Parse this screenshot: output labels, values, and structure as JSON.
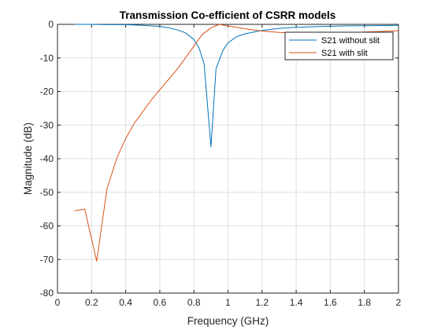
{
  "chart_data": {
    "type": "line",
    "title": "Transmission Co-efficient of CSRR models",
    "xlabel": "Frequency (GHz)",
    "ylabel": "Magnitude (dB)",
    "xlim": [
      0,
      2
    ],
    "ylim": [
      -80,
      0
    ],
    "xticks": [
      0,
      0.2,
      0.4,
      0.6,
      0.8,
      1,
      1.2,
      1.4,
      1.6,
      1.8,
      2
    ],
    "xtick_labels": [
      "0",
      "0.2",
      "0.4",
      "0.6",
      "0.8",
      "1",
      "1.2",
      "1.4",
      "1.6",
      "1.8",
      "2"
    ],
    "yticks": [
      0,
      -10,
      -20,
      -30,
      -40,
      -50,
      -60,
      -70,
      -80
    ],
    "ytick_labels": [
      "0",
      "-10",
      "-20",
      "-30",
      "-40",
      "-50",
      "-60",
      "-70",
      "-80"
    ],
    "grid": true,
    "legend_position": "top-right",
    "series": [
      {
        "name": "S21 without slit",
        "color": "#0072BD",
        "x": [
          0.1,
          0.2,
          0.3,
          0.4,
          0.5,
          0.6,
          0.65,
          0.7,
          0.75,
          0.8,
          0.83,
          0.86,
          0.9,
          0.93,
          0.97,
          1.0,
          1.05,
          1.1,
          1.2,
          1.3,
          1.4,
          1.5,
          1.6,
          1.7,
          1.8,
          1.9,
          2.0
        ],
        "y": [
          0,
          0,
          -0.1,
          -0.1,
          -0.3,
          -0.6,
          -1.0,
          -1.6,
          -2.5,
          -4.5,
          -7.0,
          -11.8,
          -36.5,
          -13.2,
          -7.8,
          -5.5,
          -3.7,
          -2.8,
          -1.8,
          -1.2,
          -0.9,
          -0.7,
          -0.55,
          -0.45,
          -0.4,
          -0.35,
          -0.3
        ]
      },
      {
        "name": "S21 with slit",
        "color": "#D95319",
        "x": [
          0.1,
          0.16,
          0.23,
          0.29,
          0.35,
          0.4,
          0.45,
          0.5,
          0.55,
          0.6,
          0.65,
          0.7,
          0.75,
          0.8,
          0.85,
          0.9,
          0.95,
          1.0,
          1.05,
          1.1,
          1.2,
          1.3,
          1.4,
          1.5,
          1.6,
          1.7,
          1.8,
          1.9,
          2.0
        ],
        "y": [
          -55.5,
          -55,
          -70.5,
          -49,
          -39.5,
          -34,
          -29.5,
          -26,
          -22.5,
          -19.5,
          -16.5,
          -13.5,
          -10,
          -6.5,
          -3,
          -1,
          0,
          -0.5,
          -0.9,
          -1.3,
          -2,
          -2.4,
          -2.6,
          -2.7,
          -2.6,
          -2.5,
          -2.3,
          -2.1,
          -1.9
        ]
      }
    ]
  }
}
